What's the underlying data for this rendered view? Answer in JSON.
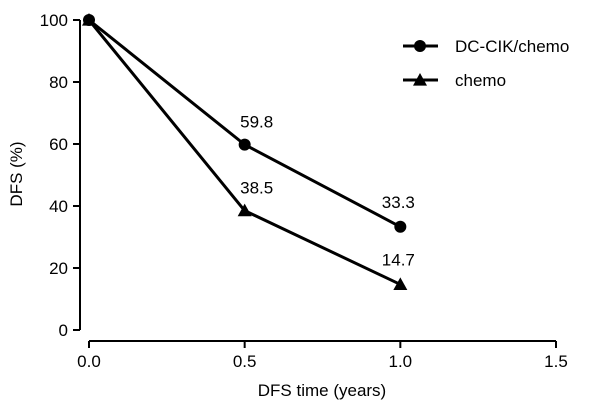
{
  "chart_data": {
    "type": "line",
    "xlabel": "DFS time (years)",
    "ylabel": "DFS (%)",
    "xlim": [
      0,
      1.5
    ],
    "ylim": [
      0,
      100
    ],
    "x_ticks": [
      "0.0",
      "0.5",
      "1.0",
      "1.5"
    ],
    "y_ticks": [
      "0",
      "20",
      "40",
      "60",
      "80",
      "100"
    ],
    "grid": false,
    "legend_position": "top-right",
    "series": [
      {
        "name": "DC-CIK/chemo",
        "marker": "circle",
        "color": "#000000",
        "x": [
          0,
          0.5,
          1.0
        ],
        "y": [
          100,
          59.8,
          33.3
        ],
        "labels": [
          "",
          "59.8",
          "33.3"
        ]
      },
      {
        "name": "chemo",
        "marker": "triangle",
        "color": "#000000",
        "x": [
          0,
          0.5,
          1.0
        ],
        "y": [
          100,
          38.5,
          14.7
        ],
        "labels": [
          "",
          "38.5",
          "14.7"
        ]
      }
    ]
  }
}
